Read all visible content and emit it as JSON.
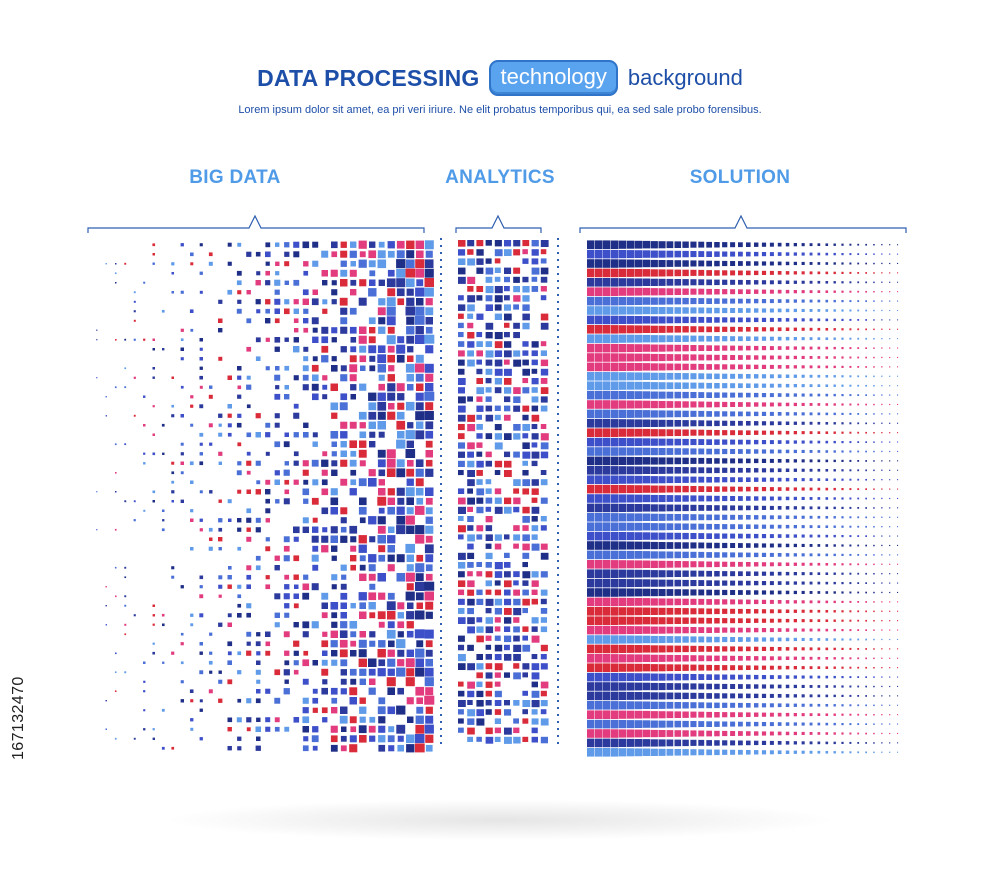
{
  "header": {
    "title": "DATA PROCESSING",
    "pill": "technology",
    "tail": "background",
    "subtitle": "Lorem ipsum dolor sit amet, ea pri veri iriure. Ne elit probatus temporibus qui, ea sed sale probo forensibus."
  },
  "sections": {
    "big_data": "BIG DATA",
    "analytics": "ANALYTICS",
    "solution": "SOLUTION"
  },
  "stock_id": "167132470",
  "palette": [
    "#2b3a9c",
    "#3d4fc9",
    "#5f9be8",
    "#e23c7f",
    "#d92b3a",
    "#1f2e86",
    "#4a6fd6"
  ],
  "colors": {
    "title_blue": "#1e4fa8",
    "label_blue": "#4f9be8",
    "pill_blue": "#5aa3ef"
  }
}
